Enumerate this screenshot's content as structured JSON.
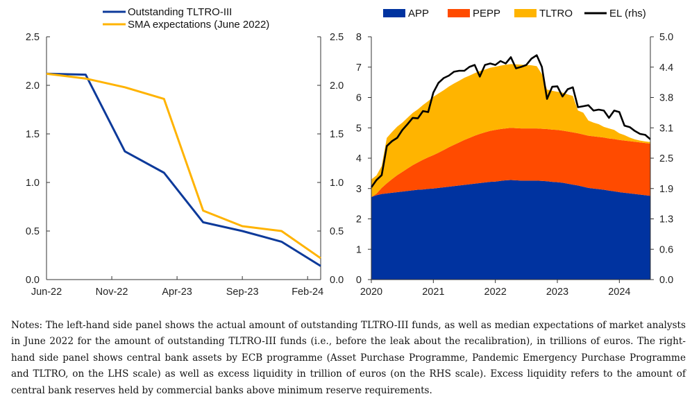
{
  "chart_data": [
    {
      "type": "line",
      "title": "",
      "xlabel": "",
      "ylabel": "",
      "x_ticks": [
        "Jun-22",
        "Nov-22",
        "Apr-23",
        "Sep-23",
        "Feb-24"
      ],
      "x_range": [
        "Jun-22",
        "Mar-24"
      ],
      "ylim": [
        0,
        2.5
      ],
      "y_ticks": [
        "0.0",
        "0.5",
        "1.0",
        "1.5",
        "2.0",
        "2.5"
      ],
      "y_right_ticks": [
        "0.0",
        "0.5",
        "1.0",
        "1.5",
        "2.0",
        "2.5"
      ],
      "grid": false,
      "legend": "top-left, above plot",
      "series": [
        {
          "name": "Outstanding TLTRO-III",
          "color": "#0D3A9A",
          "x": [
            "Jun-22",
            "Sep-22",
            "Dec-22",
            "Mar-23",
            "Jun-23",
            "Sep-23",
            "Dec-23",
            "Mar-24"
          ],
          "values": [
            2.12,
            2.11,
            1.32,
            1.1,
            0.59,
            0.5,
            0.39,
            0.14
          ]
        },
        {
          "name": "SMA expectations (June 2022)",
          "color": "#FFB300",
          "x": [
            "Jun-22",
            "Sep-22",
            "Dec-22",
            "Mar-23",
            "Jun-23",
            "Sep-23",
            "Dec-23",
            "Mar-24"
          ],
          "values": [
            2.12,
            2.07,
            1.98,
            1.86,
            0.71,
            0.55,
            0.5,
            0.22
          ]
        }
      ]
    },
    {
      "type": "area",
      "title": "",
      "xlabel": "",
      "ylabel": "",
      "x_ticks": [
        "2020",
        "2021",
        "2022",
        "2023",
        "2024"
      ],
      "x_range": [
        2020.0,
        2024.5
      ],
      "ylim": [
        0,
        8
      ],
      "y_ticks": [
        "0",
        "1",
        "2",
        "3",
        "4",
        "5",
        "6",
        "7",
        "8"
      ],
      "y2lim": [
        0,
        5
      ],
      "y2_ticks": [
        "0.0",
        "0.6",
        "1.3",
        "1.9",
        "2.5",
        "3.1",
        "3.8",
        "4.4",
        "5.0"
      ],
      "grid": false,
      "legend": "top, above plot",
      "x": [
        2020.0,
        2020.083,
        2020.167,
        2020.25,
        2020.333,
        2020.417,
        2020.5,
        2020.583,
        2020.667,
        2020.75,
        2020.833,
        2020.917,
        2021.0,
        2021.083,
        2021.167,
        2021.25,
        2021.333,
        2021.417,
        2021.5,
        2021.583,
        2021.667,
        2021.75,
        2021.833,
        2021.917,
        2022.0,
        2022.083,
        2022.167,
        2022.25,
        2022.333,
        2022.417,
        2022.5,
        2022.583,
        2022.667,
        2022.75,
        2022.833,
        2022.917,
        2023.0,
        2023.083,
        2023.167,
        2023.25,
        2023.333,
        2023.417,
        2023.5,
        2023.583,
        2023.667,
        2023.75,
        2023.833,
        2023.917,
        2024.0,
        2024.083,
        2024.167,
        2024.25,
        2024.333,
        2024.417,
        2024.5
      ],
      "series": [
        {
          "name": "APP",
          "color": "#0033A0",
          "stack": true,
          "values": [
            2.72,
            2.78,
            2.82,
            2.84,
            2.86,
            2.88,
            2.9,
            2.92,
            2.94,
            2.96,
            2.97,
            2.99,
            3.0,
            3.02,
            3.04,
            3.06,
            3.08,
            3.1,
            3.12,
            3.14,
            3.16,
            3.18,
            3.2,
            3.22,
            3.23,
            3.25,
            3.27,
            3.28,
            3.27,
            3.26,
            3.26,
            3.26,
            3.26,
            3.25,
            3.24,
            3.22,
            3.21,
            3.19,
            3.16,
            3.13,
            3.1,
            3.06,
            3.02,
            3.0,
            2.98,
            2.96,
            2.93,
            2.91,
            2.88,
            2.86,
            2.84,
            2.82,
            2.8,
            2.78,
            2.76
          ]
        },
        {
          "name": "PEPP",
          "color": "#FF4B00",
          "stack": true,
          "values": [
            0.0,
            0.05,
            0.2,
            0.33,
            0.45,
            0.56,
            0.65,
            0.74,
            0.83,
            0.9,
            0.98,
            1.04,
            1.1,
            1.16,
            1.23,
            1.3,
            1.36,
            1.42,
            1.48,
            1.53,
            1.58,
            1.62,
            1.65,
            1.68,
            1.7,
            1.71,
            1.71,
            1.72,
            1.72,
            1.72,
            1.72,
            1.72,
            1.72,
            1.72,
            1.72,
            1.72,
            1.72,
            1.72,
            1.72,
            1.72,
            1.72,
            1.72,
            1.72,
            1.72,
            1.72,
            1.72,
            1.72,
            1.72,
            1.72,
            1.72,
            1.72,
            1.72,
            1.72,
            1.72,
            1.72
          ]
        },
        {
          "name": "TLTRO",
          "color": "#FFB400",
          "stack": true,
          "values": [
            0.58,
            0.6,
            0.72,
            1.5,
            1.55,
            1.6,
            1.62,
            1.67,
            1.72,
            1.75,
            1.8,
            1.85,
            1.92,
            1.95,
            1.97,
            2.0,
            2.02,
            2.03,
            2.05,
            2.05,
            2.06,
            2.07,
            2.07,
            2.08,
            2.08,
            2.09,
            2.1,
            2.1,
            2.1,
            2.1,
            2.09,
            2.08,
            2.05,
            1.8,
            1.3,
            1.28,
            1.26,
            1.25,
            1.22,
            1.2,
            0.75,
            0.72,
            0.5,
            0.45,
            0.42,
            0.35,
            0.33,
            0.3,
            0.22,
            0.18,
            0.12,
            0.08,
            0.06,
            0.05,
            0.05
          ]
        },
        {
          "name": "EL (rhs)",
          "color": "#000000",
          "axis": "right",
          "line": true,
          "values": [
            1.9,
            2.05,
            2.15,
            2.75,
            2.85,
            2.92,
            3.08,
            3.2,
            3.33,
            3.32,
            3.47,
            3.45,
            3.85,
            4.05,
            4.15,
            4.2,
            4.28,
            4.3,
            4.3,
            4.38,
            4.42,
            4.18,
            4.42,
            4.45,
            4.42,
            4.5,
            4.45,
            4.58,
            4.35,
            4.38,
            4.42,
            4.55,
            4.62,
            4.38,
            3.72,
            3.97,
            3.98,
            3.77,
            3.92,
            3.96,
            3.55,
            3.57,
            3.59,
            3.48,
            3.5,
            3.48,
            3.33,
            3.48,
            3.45,
            3.17,
            3.14,
            3.06,
            3.0,
            2.98,
            2.89
          ]
        }
      ]
    }
  ],
  "notes": "Notes: The left-hand side panel shows the actual amount of outstanding TLTRO-III funds, as well as median expectations of market analysts in June 2022 for the amount of outstanding TLTRO-III funds (i.e., before the leak about the recalibration), in trillions of euros. The right-hand side panel shows central bank assets by ECB programme (Asset Purchase Programme, Pandemic Emergency Purchase Programme and TLTRO, on the LHS scale) as well as excess liquidity in trillion of euros (on the RHS scale). Excess liquidity refers to the amount of central bank reserves held by commercial banks above minimum reserve requirements."
}
